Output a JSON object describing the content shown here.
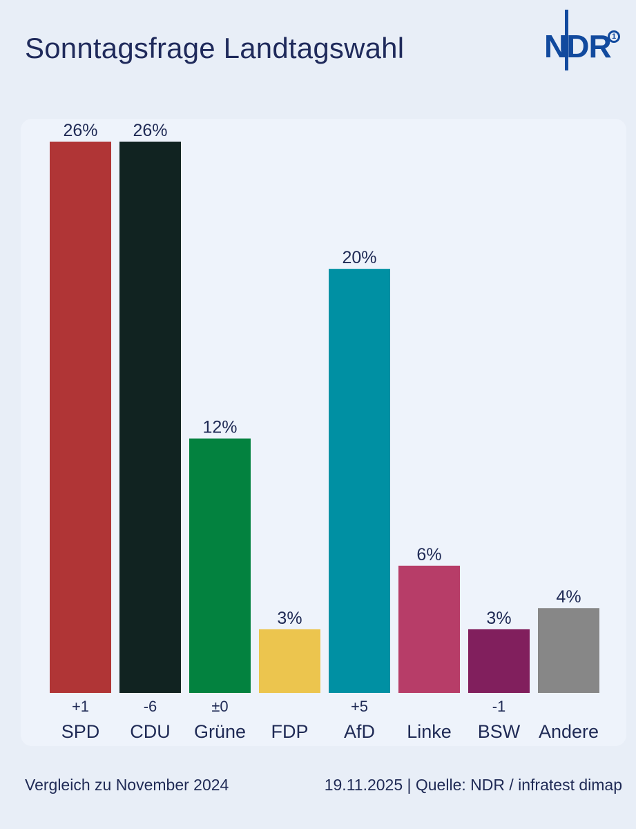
{
  "header": {
    "title": "Sonntagsfrage Landtagswahl",
    "logo_text": "NDR",
    "logo_badge": "1"
  },
  "chart_data": {
    "type": "bar",
    "title": "Sonntagsfrage Landtagswahl",
    "categories": [
      "SPD",
      "CDU",
      "Grüne",
      "FDP",
      "AfD",
      "Linke",
      "BSW",
      "Andere"
    ],
    "values": [
      26,
      26,
      12,
      3,
      20,
      6,
      3,
      4
    ],
    "value_labels": [
      "26%",
      "26%",
      "12%",
      "3%",
      "20%",
      "6%",
      "3%",
      "4%"
    ],
    "changes": [
      "+1",
      "-6",
      "±0",
      "",
      "+5",
      "",
      "-1",
      ""
    ],
    "colors": [
      "#b03536",
      "#112321",
      "#03823f",
      "#ecc54e",
      "#0090a3",
      "#b73d68",
      "#811f5d",
      "#878787"
    ],
    "ylim": [
      0,
      26
    ],
    "xlabel": "",
    "ylabel": "",
    "grid": false,
    "legend": "none"
  },
  "footer": {
    "comparison": "Vergleich zu November 2024",
    "source": "19.11.2025  |  Quelle: NDR / infratest dimap"
  }
}
